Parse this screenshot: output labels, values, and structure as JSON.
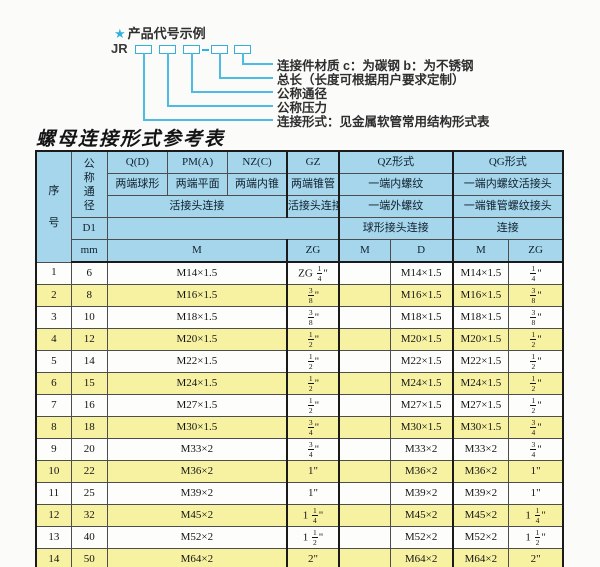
{
  "colors": {
    "accent_cyan": "#35b0dd",
    "header_blue": "#a5d6ec",
    "row_yellow": "#f7f2a2",
    "border_dark": "#1a1a1a",
    "text": "#141414"
  },
  "diagram": {
    "star": "★",
    "title": "产品代号示例",
    "prefix": "JR",
    "labels": [
      "连接件材质  c：为碳钢  b：为不锈钢",
      "总长（长度可根据用户要求定制）",
      "公称通径",
      "公称压力",
      "连接形式：见金属软管常用结构形式表"
    ]
  },
  "page_title": "螺母连接形式参考表",
  "table": {
    "header": {
      "serial": "序号",
      "dn": "公称通径",
      "d1": "D1",
      "mm": "mm",
      "qd": "Q(D)",
      "pm": "PM(A)",
      "nz": "NZ(C)",
      "gz": "GZ",
      "qz": "QZ形式",
      "qg": "QG形式",
      "qd_type": "两端球形",
      "pm_type": "两端平面",
      "nz_type": "两端内锥",
      "gz_type": "两端锥管",
      "qz_type1": "一端内螺纹",
      "qg_type1": "一端内螺纹活接头",
      "union3": "活接头连接",
      "gz_union": "活接头连接",
      "qz_type2": "一端外螺纹",
      "qg_type2": "一端锥管螺纹接头",
      "qz_conn": "球形接头连接",
      "qg_conn": "连接",
      "m": "M",
      "zg": "ZG",
      "qz_m": "M",
      "qz_d": "D",
      "qg_m": "M",
      "qg_zg": "ZG"
    },
    "rows": [
      {
        "no": "1",
        "dn": "6",
        "m": "M14×1.5",
        "gz": "ZG 1/4\"",
        "qz_m": "",
        "qz_d": "M14×1.5",
        "qg_m": "M14×1.5",
        "qg_zg": "1/4\""
      },
      {
        "no": "2",
        "dn": "8",
        "m": "M16×1.5",
        "gz": "3/8\"",
        "qz_m": "",
        "qz_d": "M16×1.5",
        "qg_m": "M16×1.5",
        "qg_zg": "3/8\""
      },
      {
        "no": "3",
        "dn": "10",
        "m": "M18×1.5",
        "gz": "3/8\"",
        "qz_m": "",
        "qz_d": "M18×1.5",
        "qg_m": "M18×1.5",
        "qg_zg": "3/8\""
      },
      {
        "no": "4",
        "dn": "12",
        "m": "M20×1.5",
        "gz": "1/2\"",
        "qz_m": "",
        "qz_d": "M20×1.5",
        "qg_m": "M20×1.5",
        "qg_zg": "1/2\""
      },
      {
        "no": "5",
        "dn": "14",
        "m": "M22×1.5",
        "gz": "1/2\"",
        "qz_m": "",
        "qz_d": "M22×1.5",
        "qg_m": "M22×1.5",
        "qg_zg": "1/2\""
      },
      {
        "no": "6",
        "dn": "15",
        "m": "M24×1.5",
        "gz": "1/2\"",
        "qz_m": "",
        "qz_d": "M24×1.5",
        "qg_m": "M24×1.5",
        "qg_zg": "1/2\""
      },
      {
        "no": "7",
        "dn": "16",
        "m": "M27×1.5",
        "gz": "1/2\"",
        "qz_m": "",
        "qz_d": "M27×1.5",
        "qg_m": "M27×1.5",
        "qg_zg": "1/2\""
      },
      {
        "no": "8",
        "dn": "18",
        "m": "M30×1.5",
        "gz": "3/4\"",
        "qz_m": "",
        "qz_d": "M30×1.5",
        "qg_m": "M30×1.5",
        "qg_zg": "3/4\""
      },
      {
        "no": "9",
        "dn": "20",
        "m": "M33×2",
        "gz": "3/4\"",
        "qz_m": "",
        "qz_d": "M33×2",
        "qg_m": "M33×2",
        "qg_zg": "3/4\""
      },
      {
        "no": "10",
        "dn": "22",
        "m": "M36×2",
        "gz": "1\"",
        "qz_m": "",
        "qz_d": "M36×2",
        "qg_m": "M36×2",
        "qg_zg": "1\""
      },
      {
        "no": "11",
        "dn": "25",
        "m": "M39×2",
        "gz": "1\"",
        "qz_m": "",
        "qz_d": "M39×2",
        "qg_m": "M39×2",
        "qg_zg": "1\""
      },
      {
        "no": "12",
        "dn": "32",
        "m": "M45×2",
        "gz": "1 1/4\"",
        "qz_m": "",
        "qz_d": "M45×2",
        "qg_m": "M45×2",
        "qg_zg": "1 1/4\""
      },
      {
        "no": "13",
        "dn": "40",
        "m": "M52×2",
        "gz": "1 1/2\"",
        "qz_m": "",
        "qz_d": "M52×2",
        "qg_m": "M52×2",
        "qg_zg": "1 1/2\""
      },
      {
        "no": "14",
        "dn": "50",
        "m": "M64×2",
        "gz": "2\"",
        "qz_m": "",
        "qz_d": "M64×2",
        "qg_m": "M64×2",
        "qg_zg": "2\""
      }
    ]
  }
}
